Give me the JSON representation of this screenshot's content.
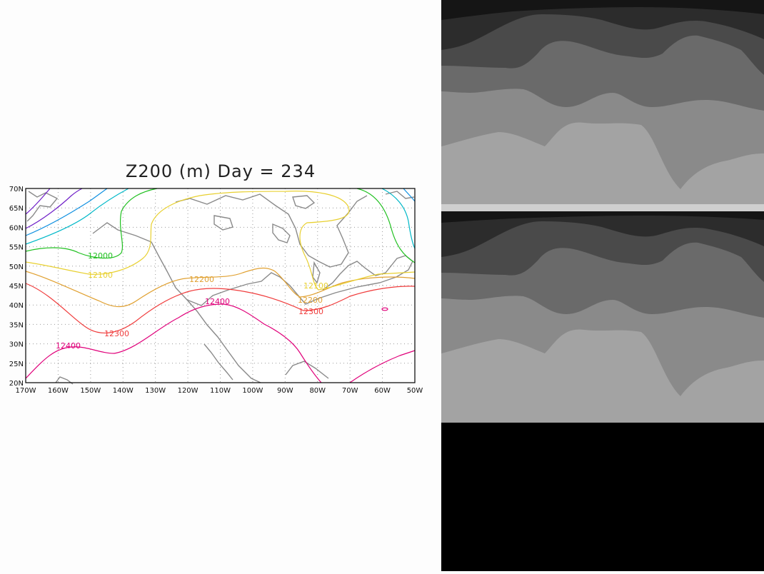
{
  "title": "Z200 (m) Day = 234",
  "map": {
    "lon_labels": [
      "170W",
      "160W",
      "150W",
      "140W",
      "130W",
      "120W",
      "110W",
      "100W",
      "90W",
      "80W",
      "70W",
      "60W",
      "50W"
    ],
    "lat_labels": [
      "20N",
      "25N",
      "30N",
      "35N",
      "40N",
      "45N",
      "50N",
      "55N",
      "60N",
      "65N",
      "70N"
    ],
    "lon_range": [
      -170,
      -50
    ],
    "lat_range": [
      20,
      70
    ],
    "grid": "dotted"
  },
  "contours": [
    {
      "level": 12400,
      "label": "12400",
      "color": "#e0007a"
    },
    {
      "level": 12300,
      "label": "12300",
      "color": "#f03c3c"
    },
    {
      "level": 12200,
      "label": "12200",
      "color": "#e0a030"
    },
    {
      "level": 12100,
      "label": "12100",
      "color": "#e8d030"
    },
    {
      "level": 12000,
      "label": "12000",
      "color": "#20c020"
    },
    {
      "level": 11900,
      "label": "",
      "color": "#00b8c8"
    },
    {
      "level": 11800,
      "label": "",
      "color": "#1090e0"
    },
    {
      "level": 11700,
      "label": "",
      "color": "#7020c8"
    }
  ],
  "side_panels": {
    "background": "#000000",
    "shades": [
      "#1a1a1a",
      "#3a3a3a",
      "#5a5a5a",
      "#7a7a7a",
      "#9a9a9a"
    ]
  }
}
